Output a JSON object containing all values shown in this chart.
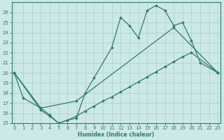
{
  "xlabel": "Humidex (Indice chaleur)",
  "line_color": "#2d7d6b",
  "bg_color": "#cce8e8",
  "grid_color": "#aacfcf",
  "ylim": [
    15,
    27
  ],
  "xlim": [
    -0.3,
    23.3
  ],
  "yticks": [
    15,
    16,
    17,
    18,
    19,
    20,
    21,
    22,
    23,
    24,
    25,
    26
  ],
  "xticks": [
    0,
    1,
    2,
    3,
    4,
    5,
    6,
    7,
    8,
    9,
    10,
    11,
    12,
    13,
    14,
    15,
    16,
    17,
    18,
    19,
    20,
    21,
    22,
    23
  ],
  "curve1_x": [
    0,
    1,
    3,
    4,
    5,
    6,
    7,
    8,
    9,
    11,
    12,
    13,
    14,
    15,
    16,
    17,
    18,
    19,
    20,
    21,
    23
  ],
  "curve1_y": [
    20,
    17.5,
    16.5,
    15.8,
    15.0,
    15.3,
    15.5,
    18.0,
    19.5,
    22.5,
    25.5,
    24.7,
    23.5,
    26.2,
    26.7,
    26.2,
    24.7,
    25.0,
    23.2,
    21.0,
    20.0
  ],
  "curve2_x": [
    0,
    3,
    7,
    18,
    23
  ],
  "curve2_y": [
    20.0,
    16.5,
    17.2,
    24.5,
    20.0
  ],
  "curve3_x": [
    0,
    3,
    4,
    5,
    6,
    7,
    8,
    9,
    10,
    11,
    12,
    13,
    14,
    15,
    16,
    17,
    18,
    19,
    20,
    23
  ],
  "curve3_y": [
    20.0,
    16.3,
    15.7,
    15.0,
    15.3,
    15.7,
    16.2,
    16.7,
    17.2,
    17.6,
    18.1,
    18.6,
    19.1,
    19.6,
    20.1,
    20.6,
    21.1,
    21.6,
    22.0,
    20.0
  ]
}
